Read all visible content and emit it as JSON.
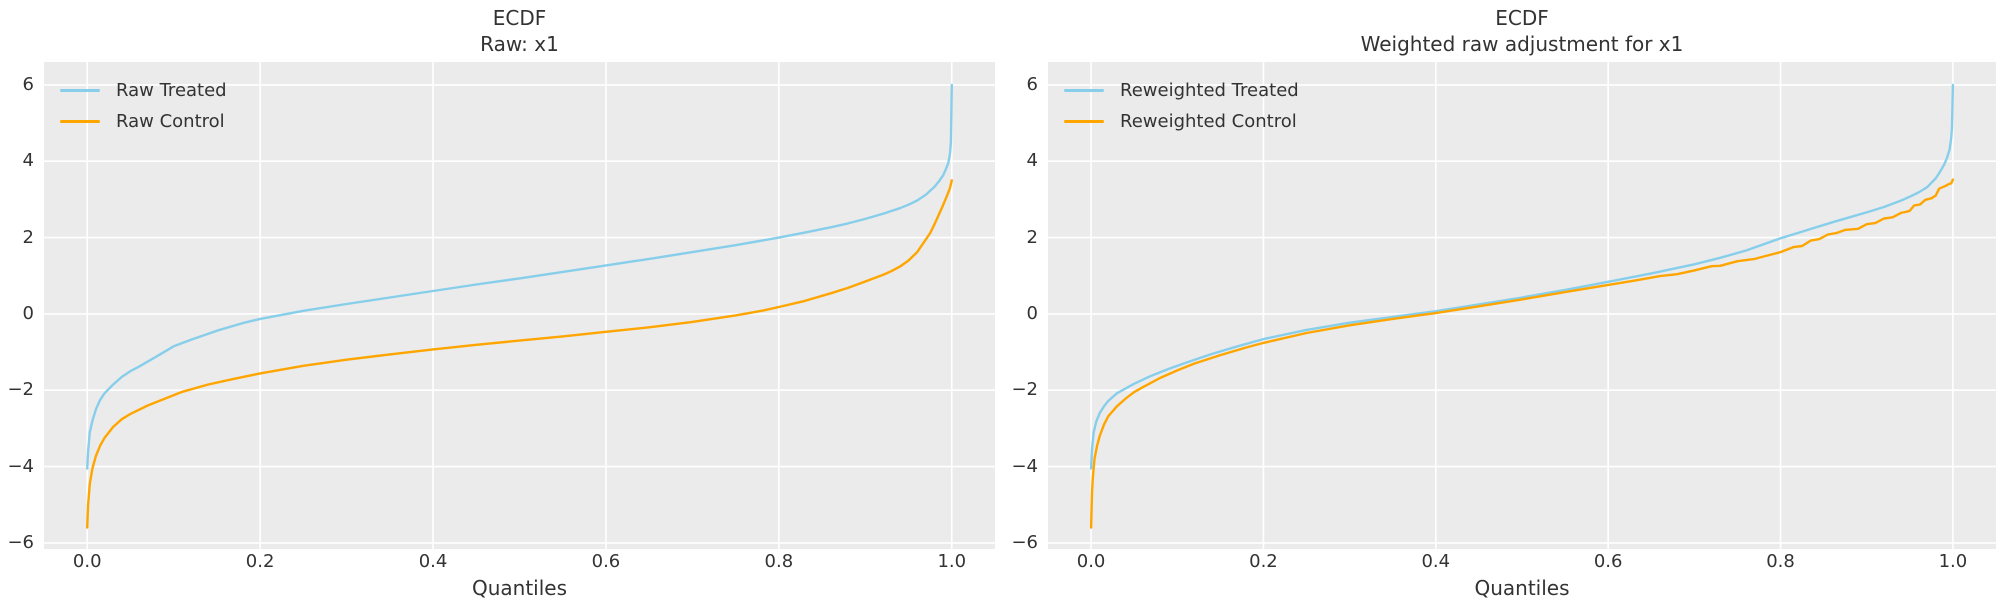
{
  "colors": {
    "figure_bg": "#ffffff",
    "axes_bg": "#ebebeb",
    "grid": "#ffffff",
    "text": "#333333",
    "treated": "#87ceeb",
    "control": "#ffa500"
  },
  "chart_data": [
    {
      "type": "line",
      "title": "ECDF",
      "subtitle": "Raw: x1",
      "xlabel": "Quantiles",
      "ylabel": "",
      "xlim": [
        -0.05,
        1.05
      ],
      "ylim": [
        -6.16,
        6.6
      ],
      "grid": true,
      "legend_position": "upper left",
      "xticks": [
        0.0,
        0.2,
        0.4,
        0.6,
        0.8,
        1.0
      ],
      "xtick_labels": [
        "0.0",
        "0.2",
        "0.4",
        "0.6",
        "0.8",
        "1.0"
      ],
      "yticks": [
        6,
        4,
        2,
        0,
        -2,
        -4,
        -6
      ],
      "ytick_labels": [
        "6",
        "4",
        "2",
        "0",
        "−2",
        "−4",
        "−6"
      ],
      "series": [
        {
          "name": "Raw Treated",
          "color": "#87ceeb",
          "points": [
            [
              0,
              -4.05
            ],
            [
              0.001,
              -3.6
            ],
            [
              0.003,
              -3.1
            ],
            [
              0.006,
              -2.8
            ],
            [
              0.01,
              -2.5
            ],
            [
              0.015,
              -2.25
            ],
            [
              0.02,
              -2.08
            ],
            [
              0.03,
              -1.85
            ],
            [
              0.04,
              -1.65
            ],
            [
              0.05,
              -1.5
            ],
            [
              0.06,
              -1.38
            ],
            [
              0.08,
              -1.12
            ],
            [
              0.1,
              -0.85
            ],
            [
              0.12,
              -0.68
            ],
            [
              0.15,
              -0.44
            ],
            [
              0.18,
              -0.24
            ],
            [
              0.2,
              -0.13
            ],
            [
              0.25,
              0.08
            ],
            [
              0.3,
              0.26
            ],
            [
              0.35,
              0.43
            ],
            [
              0.4,
              0.6
            ],
            [
              0.45,
              0.77
            ],
            [
              0.5,
              0.93
            ],
            [
              0.55,
              1.1
            ],
            [
              0.6,
              1.27
            ],
            [
              0.65,
              1.44
            ],
            [
              0.7,
              1.62
            ],
            [
              0.75,
              1.8
            ],
            [
              0.8,
              2.0
            ],
            [
              0.83,
              2.13
            ],
            [
              0.86,
              2.27
            ],
            [
              0.88,
              2.37
            ],
            [
              0.9,
              2.49
            ],
            [
              0.92,
              2.62
            ],
            [
              0.94,
              2.77
            ],
            [
              0.95,
              2.86
            ],
            [
              0.96,
              2.97
            ],
            [
              0.97,
              3.12
            ],
            [
              0.98,
              3.33
            ],
            [
              0.985,
              3.47
            ],
            [
              0.99,
              3.63
            ],
            [
              0.993,
              3.78
            ],
            [
              0.996,
              3.95
            ],
            [
              0.998,
              4.2
            ],
            [
              0.999,
              4.5
            ],
            [
              1,
              6.0
            ]
          ]
        },
        {
          "name": "Raw Control",
          "color": "#ffa500",
          "points": [
            [
              0,
              -5.6
            ],
            [
              0.001,
              -5.0
            ],
            [
              0.003,
              -4.45
            ],
            [
              0.006,
              -4.05
            ],
            [
              0.01,
              -3.72
            ],
            [
              0.015,
              -3.45
            ],
            [
              0.02,
              -3.25
            ],
            [
              0.03,
              -2.96
            ],
            [
              0.04,
              -2.76
            ],
            [
              0.05,
              -2.62
            ],
            [
              0.07,
              -2.4
            ],
            [
              0.09,
              -2.22
            ],
            [
              0.11,
              -2.04
            ],
            [
              0.14,
              -1.85
            ],
            [
              0.17,
              -1.7
            ],
            [
              0.2,
              -1.56
            ],
            [
              0.25,
              -1.36
            ],
            [
              0.3,
              -1.2
            ],
            [
              0.35,
              -1.06
            ],
            [
              0.4,
              -0.93
            ],
            [
              0.45,
              -0.81
            ],
            [
              0.5,
              -0.7
            ],
            [
              0.55,
              -0.59
            ],
            [
              0.6,
              -0.47
            ],
            [
              0.65,
              -0.35
            ],
            [
              0.7,
              -0.21
            ],
            [
              0.75,
              -0.04
            ],
            [
              0.78,
              0.08
            ],
            [
              0.8,
              0.18
            ],
            [
              0.83,
              0.34
            ],
            [
              0.86,
              0.54
            ],
            [
              0.88,
              0.68
            ],
            [
              0.9,
              0.85
            ],
            [
              0.92,
              1.02
            ],
            [
              0.93,
              1.12
            ],
            [
              0.94,
              1.24
            ],
            [
              0.95,
              1.4
            ],
            [
              0.96,
              1.62
            ],
            [
              0.97,
              1.95
            ],
            [
              0.975,
              2.12
            ],
            [
              0.98,
              2.35
            ],
            [
              0.985,
              2.6
            ],
            [
              0.99,
              2.85
            ],
            [
              0.995,
              3.12
            ],
            [
              0.998,
              3.3
            ],
            [
              1,
              3.5
            ]
          ]
        }
      ]
    },
    {
      "type": "line",
      "title": "ECDF",
      "subtitle": "Weighted raw adjustment for x1",
      "xlabel": "Quantiles",
      "ylabel": "",
      "xlim": [
        -0.05,
        1.05
      ],
      "ylim": [
        -6.16,
        6.6
      ],
      "grid": true,
      "legend_position": "upper left",
      "xticks": [
        0.0,
        0.2,
        0.4,
        0.6,
        0.8,
        1.0
      ],
      "xtick_labels": [
        "0.0",
        "0.2",
        "0.4",
        "0.6",
        "0.8",
        "1.0"
      ],
      "yticks": [
        6,
        4,
        2,
        0,
        -2,
        -4,
        -6
      ],
      "ytick_labels": [
        "6",
        "4",
        "2",
        "0",
        "−2",
        "−4",
        "−6"
      ],
      "series": [
        {
          "name": "Reweighted Treated",
          "color": "#87ceeb",
          "points": [
            [
              0,
              -4.05
            ],
            [
              0.001,
              -3.55
            ],
            [
              0.003,
              -3.1
            ],
            [
              0.006,
              -2.82
            ],
            [
              0.01,
              -2.6
            ],
            [
              0.015,
              -2.42
            ],
            [
              0.02,
              -2.28
            ],
            [
              0.03,
              -2.08
            ],
            [
              0.05,
              -1.83
            ],
            [
              0.07,
              -1.62
            ],
            [
              0.09,
              -1.44
            ],
            [
              0.11,
              -1.28
            ],
            [
              0.14,
              -1.05
            ],
            [
              0.17,
              -0.85
            ],
            [
              0.2,
              -0.66
            ],
            [
              0.25,
              -0.42
            ],
            [
              0.3,
              -0.23
            ],
            [
              0.35,
              -0.08
            ],
            [
              0.4,
              0.07
            ],
            [
              0.45,
              0.25
            ],
            [
              0.5,
              0.43
            ],
            [
              0.55,
              0.63
            ],
            [
              0.6,
              0.84
            ],
            [
              0.65,
              1.06
            ],
            [
              0.7,
              1.3
            ],
            [
              0.73,
              1.47
            ],
            [
              0.76,
              1.66
            ],
            [
              0.8,
              1.98
            ],
            [
              0.82,
              2.12
            ],
            [
              0.84,
              2.26
            ],
            [
              0.86,
              2.4
            ],
            [
              0.88,
              2.53
            ],
            [
              0.9,
              2.66
            ],
            [
              0.92,
              2.8
            ],
            [
              0.94,
              2.97
            ],
            [
              0.95,
              3.07
            ],
            [
              0.96,
              3.18
            ],
            [
              0.97,
              3.32
            ],
            [
              0.98,
              3.55
            ],
            [
              0.985,
              3.72
            ],
            [
              0.99,
              3.92
            ],
            [
              0.993,
              4.08
            ],
            [
              0.996,
              4.3
            ],
            [
              0.998,
              4.6
            ],
            [
              0.999,
              4.9
            ],
            [
              1,
              6.0
            ]
          ]
        },
        {
          "name": "Reweighted Control",
          "color": "#ffa500",
          "points": [
            [
              0,
              -5.6
            ],
            [
              0.001,
              -4.7
            ],
            [
              0.002,
              -4.3
            ],
            [
              0.004,
              -3.8
            ],
            [
              0.007,
              -3.45
            ],
            [
              0.01,
              -3.2
            ],
            [
              0.015,
              -2.9
            ],
            [
              0.02,
              -2.68
            ],
            [
              0.03,
              -2.42
            ],
            [
              0.04,
              -2.22
            ],
            [
              0.05,
              -2.05
            ],
            [
              0.06,
              -1.92
            ],
            [
              0.08,
              -1.68
            ],
            [
              0.1,
              -1.48
            ],
            [
              0.12,
              -1.3
            ],
            [
              0.15,
              -1.08
            ],
            [
              0.18,
              -0.88
            ],
            [
              0.2,
              -0.76
            ],
            [
              0.25,
              -0.5
            ],
            [
              0.3,
              -0.3
            ],
            [
              0.35,
              -0.13
            ],
            [
              0.4,
              0.02
            ],
            [
              0.45,
              0.2
            ],
            [
              0.5,
              0.38
            ],
            [
              0.55,
              0.57
            ],
            [
              0.6,
              0.76
            ],
            [
              0.63,
              0.87
            ],
            [
              0.66,
              0.99
            ],
            [
              0.68,
              1.04
            ],
            [
              0.7,
              1.14
            ],
            [
              0.72,
              1.25
            ],
            [
              0.73,
              1.26
            ],
            [
              0.75,
              1.38
            ],
            [
              0.77,
              1.44
            ],
            [
              0.79,
              1.56
            ],
            [
              0.8,
              1.62
            ],
            [
              0.815,
              1.75
            ],
            [
              0.825,
              1.78
            ],
            [
              0.835,
              1.92
            ],
            [
              0.845,
              1.96
            ],
            [
              0.855,
              2.08
            ],
            [
              0.865,
              2.12
            ],
            [
              0.875,
              2.2
            ],
            [
              0.89,
              2.23
            ],
            [
              0.9,
              2.35
            ],
            [
              0.91,
              2.38
            ],
            [
              0.92,
              2.5
            ],
            [
              0.93,
              2.53
            ],
            [
              0.94,
              2.65
            ],
            [
              0.945,
              2.67
            ],
            [
              0.95,
              2.7
            ],
            [
              0.955,
              2.84
            ],
            [
              0.962,
              2.87
            ],
            [
              0.968,
              2.99
            ],
            [
              0.975,
              3.03
            ],
            [
              0.98,
              3.1
            ],
            [
              0.984,
              3.28
            ],
            [
              0.988,
              3.32
            ],
            [
              0.992,
              3.36
            ],
            [
              0.995,
              3.4
            ],
            [
              0.998,
              3.42
            ],
            [
              1,
              3.52
            ]
          ]
        }
      ]
    }
  ]
}
